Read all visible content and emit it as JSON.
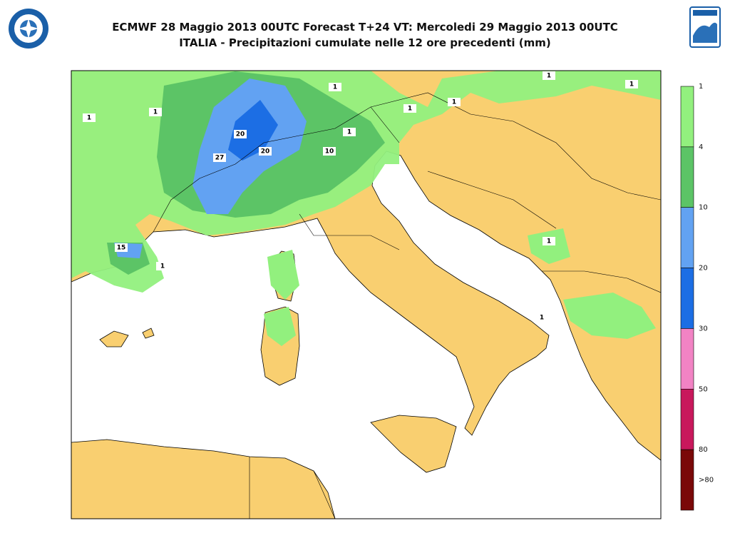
{
  "header": {
    "title_line1": "ECMWF 28 Maggio 2013 00UTC Forecast T+24 VT: Mercoledi 29 Maggio 2013 00UTC",
    "title_line2": "ITALIA - Precipitazioni cumulate nelle 12 ore precedenti (mm)"
  },
  "legend": {
    "colors": [
      "#92f07e",
      "#5cc466",
      "#62a2f2",
      "#1c6ee4",
      "#f283c4",
      "#c8185c",
      "#7a0808"
    ],
    "labels": [
      "1",
      "4",
      "10",
      "20",
      "30",
      "50",
      "80",
      ">80"
    ]
  },
  "contour_labels": [
    "1",
    "1",
    "1",
    "20",
    "27",
    "20",
    "10",
    "15",
    "1",
    "1",
    "1",
    "1",
    "1",
    "1",
    "1",
    "1"
  ]
}
